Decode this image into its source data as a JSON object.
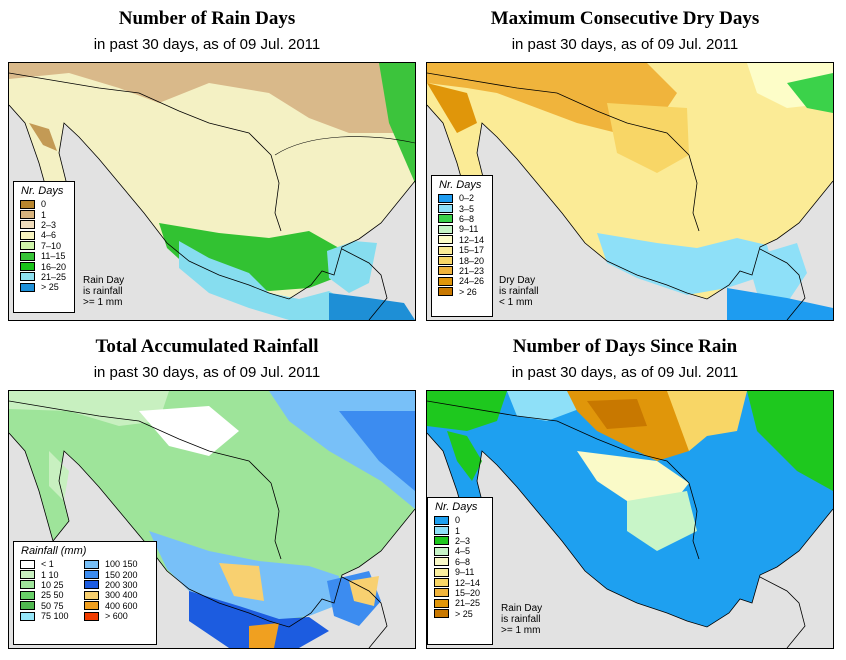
{
  "panels": [
    {
      "title": "Number of Rain Days",
      "subtitle": "in past 30 days, as of  09 Jul. 2011"
    },
    {
      "title": "Maximum Consecutive Dry Days",
      "subtitle": "in past 30 days, as of  09 Jul. 2011"
    },
    {
      "title": "Total Accumulated Rainfall",
      "subtitle": "in past 30 days, as of  09 Jul. 2011"
    },
    {
      "title": "Number of Days Since Rain",
      "subtitle": "in past 30 days, as of  09 Jul. 2011"
    }
  ],
  "rain_days": {
    "legend_title": "Nr. Days",
    "classes": [
      {
        "label": "0",
        "color": "#b8862e"
      },
      {
        "label": "1",
        "color": "#d8b47e"
      },
      {
        "label": "2–3",
        "color": "#efdcbc"
      },
      {
        "label": "4–6",
        "color": "#f8f4c0"
      },
      {
        "label": "7–10",
        "color": "#cff5aa"
      },
      {
        "label": "11–15",
        "color": "#37c437"
      },
      {
        "label": "16–20",
        "color": "#19c219"
      },
      {
        "label": "21–25",
        "color": "#8ee0f0"
      },
      {
        "label": "> 25",
        "color": "#1e90d8"
      }
    ],
    "note": [
      "Rain Day",
      "is rainfall",
      ">= 1 mm"
    ]
  },
  "dry_days": {
    "legend_title": "Nr. Days",
    "classes": [
      {
        "label": "0–2",
        "color": "#1e9cf0"
      },
      {
        "label": "3–5",
        "color": "#8ee0f8"
      },
      {
        "label": "6–8",
        "color": "#3bd24a"
      },
      {
        "label": "9–11",
        "color": "#c6f5c6"
      },
      {
        "label": "12–14",
        "color": "#fdfdc8"
      },
      {
        "label": "15–17",
        "color": "#fbeb96"
      },
      {
        "label": "18–20",
        "color": "#f8d666"
      },
      {
        "label": "21–23",
        "color": "#f0b43c"
      },
      {
        "label": "24–26",
        "color": "#e0960a"
      },
      {
        "label": "> 26",
        "color": "#c87800"
      }
    ],
    "note": [
      "Dry Day",
      "is rainfall",
      "< 1 mm"
    ]
  },
  "rainfall": {
    "legend_title": "Rainfall (mm)",
    "classes_left": [
      {
        "label": "< 1",
        "color": "#ffffff"
      },
      {
        "label": "1   10",
        "color": "#c8f0c0"
      },
      {
        "label": "10   25",
        "color": "#9ee49a"
      },
      {
        "label": "25   50",
        "color": "#68d068"
      },
      {
        "label": "50   75",
        "color": "#50b850"
      },
      {
        "label": "75   100",
        "color": "#96e6f8"
      }
    ],
    "classes_right": [
      {
        "label": "100  150",
        "color": "#78c0f8"
      },
      {
        "label": "150  200",
        "color": "#3c8cf0"
      },
      {
        "label": "200  300",
        "color": "#1c5ce0"
      },
      {
        "label": "300  400",
        "color": "#f8d070"
      },
      {
        "label": "400  600",
        "color": "#f0a020"
      },
      {
        "label": "> 600",
        "color": "#f03c00"
      }
    ]
  },
  "since_rain": {
    "legend_title": "Nr. Days",
    "classes": [
      {
        "label": "0",
        "color": "#1ea0f0"
      },
      {
        "label": "1",
        "color": "#8ee0f8"
      },
      {
        "label": "2–3",
        "color": "#1ec81e"
      },
      {
        "label": "4–5",
        "color": "#c8f5c8"
      },
      {
        "label": "6–8",
        "color": "#fafac8"
      },
      {
        "label": "9–11",
        "color": "#fbf0a0"
      },
      {
        "label": "12–14",
        "color": "#f8d666"
      },
      {
        "label": "15–20",
        "color": "#f0b43c"
      },
      {
        "label": "21–25",
        "color": "#e0960a"
      },
      {
        "label": "> 25",
        "color": "#c87800"
      }
    ],
    "note": [
      "Rain Day",
      "is rainfall",
      ">= 1 mm"
    ]
  },
  "colors": {
    "ocean": "#e2e2e2",
    "border": "#000000"
  }
}
